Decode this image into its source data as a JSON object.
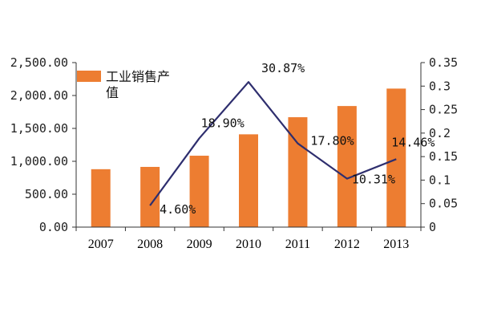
{
  "chart_data": {
    "type": "bar",
    "categories": [
      "2007",
      "2008",
      "2009",
      "2010",
      "2011",
      "2012",
      "2013"
    ],
    "series": [
      {
        "name": "工业销售产值",
        "type": "bar",
        "axis": "left",
        "color": "#ED7D31",
        "values": [
          880,
          915,
          1085,
          1410,
          1670,
          1840,
          2105
        ]
      },
      {
        "type": "line",
        "axis": "right",
        "color": "#2E2E6E",
        "values": [
          null,
          0.046,
          0.189,
          0.3087,
          0.178,
          0.1031,
          0.1446
        ],
        "labels": [
          "",
          "4.60%",
          "18.90%",
          "30.87%",
          "17.80%",
          "10.31%",
          "14.46%"
        ]
      }
    ],
    "y_left": {
      "ylim": [
        0,
        2500
      ],
      "ticks": [
        "0.00",
        "500.00",
        "1,000.00",
        "1,500.00",
        "2,000.00",
        "2,500.00"
      ]
    },
    "y_right": {
      "ylim": [
        0,
        0.35
      ],
      "ticks": [
        "0",
        "0.05",
        "0.1",
        "0.15",
        "0.2",
        "0.25",
        "0.3",
        "0.35"
      ]
    },
    "legend": {
      "position": "top-left",
      "lines": [
        "工业销售产",
        "值"
      ]
    },
    "grid": false,
    "title": "",
    "xlabel": "",
    "ylabel": ""
  }
}
